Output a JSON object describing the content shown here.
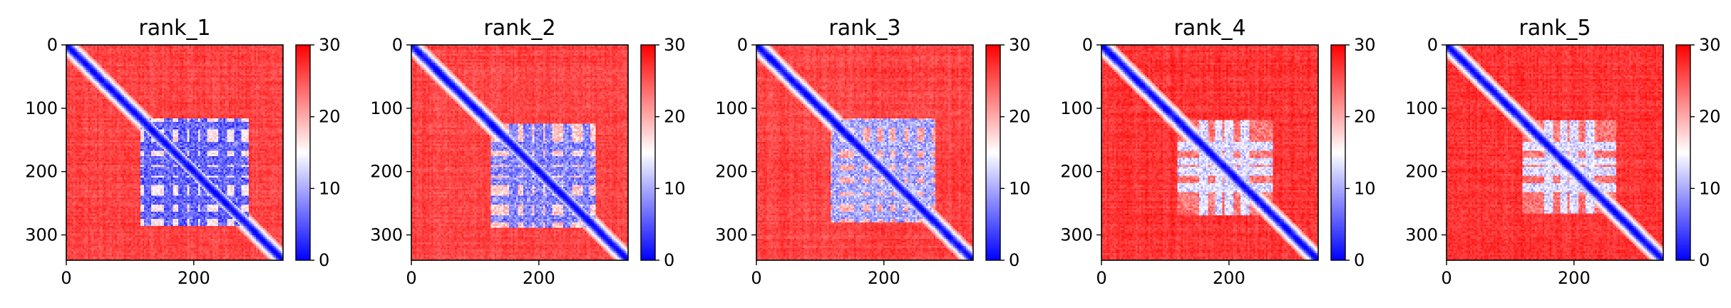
{
  "chart_data": [
    {
      "type": "heatmap",
      "title": "rank_1",
      "n": 340,
      "xlim": [
        0,
        340
      ],
      "ylim": [
        340,
        0
      ],
      "xticks": [
        0,
        200
      ],
      "yticks": [
        0,
        100,
        200,
        300
      ],
      "colorbar": {
        "min": 0,
        "max": 30,
        "ticks": [
          0,
          10,
          20,
          30
        ],
        "colormap": "bwr"
      },
      "low_region": [
        115,
        285
      ],
      "block_centers": [
        127,
        160,
        183,
        200,
        215,
        245,
        270
      ],
      "background_value": 28,
      "block_value": 13
    },
    {
      "type": "heatmap",
      "title": "rank_2",
      "n": 340,
      "xlim": [
        0,
        340
      ],
      "ylim": [
        340,
        0
      ],
      "xticks": [
        0,
        200
      ],
      "yticks": [
        0,
        100,
        200,
        300
      ],
      "colorbar": {
        "min": 0,
        "max": 30,
        "ticks": [
          0,
          10,
          20,
          30
        ],
        "colormap": "bwr"
      },
      "low_region": [
        125,
        290
      ],
      "block_centers": [
        160,
        183,
        200,
        215,
        245,
        275
      ],
      "background_value": 28,
      "block_value": 15
    },
    {
      "type": "heatmap",
      "title": "rank_3",
      "n": 340,
      "xlim": [
        0,
        340
      ],
      "ylim": [
        340,
        0
      ],
      "xticks": [
        0,
        200
      ],
      "yticks": [
        0,
        100,
        200,
        300
      ],
      "colorbar": {
        "min": 0,
        "max": 30,
        "ticks": [
          0,
          10,
          20,
          30
        ],
        "colormap": "bwr"
      },
      "low_region": [
        115,
        280
      ],
      "block_centers": [
        125,
        160,
        185,
        205,
        225,
        245,
        270
      ],
      "background_value": 28,
      "block_value": 17
    },
    {
      "type": "heatmap",
      "title": "rank_4",
      "n": 340,
      "xlim": [
        0,
        340
      ],
      "ylim": [
        340,
        0
      ],
      "xticks": [
        0,
        200
      ],
      "yticks": [
        0,
        100,
        200,
        300
      ],
      "colorbar": {
        "min": 0,
        "max": 30,
        "ticks": [
          0,
          10,
          20,
          30
        ],
        "colormap": "bwr"
      },
      "low_region": [
        120,
        270
      ],
      "block_centers": [
        160,
        185,
        200,
        225
      ],
      "background_value": 29,
      "block_value": 20
    },
    {
      "type": "heatmap",
      "title": "rank_5",
      "n": 340,
      "xlim": [
        0,
        340
      ],
      "ylim": [
        340,
        0
      ],
      "xticks": [
        0,
        200
      ],
      "yticks": [
        0,
        100,
        200,
        300
      ],
      "colorbar": {
        "min": 0,
        "max": 30,
        "ticks": [
          0,
          10,
          20,
          30
        ],
        "colormap": "bwr"
      },
      "low_region": [
        120,
        265
      ],
      "block_centers": [
        160,
        185,
        200,
        225
      ],
      "background_value": 29,
      "block_value": 20
    }
  ]
}
